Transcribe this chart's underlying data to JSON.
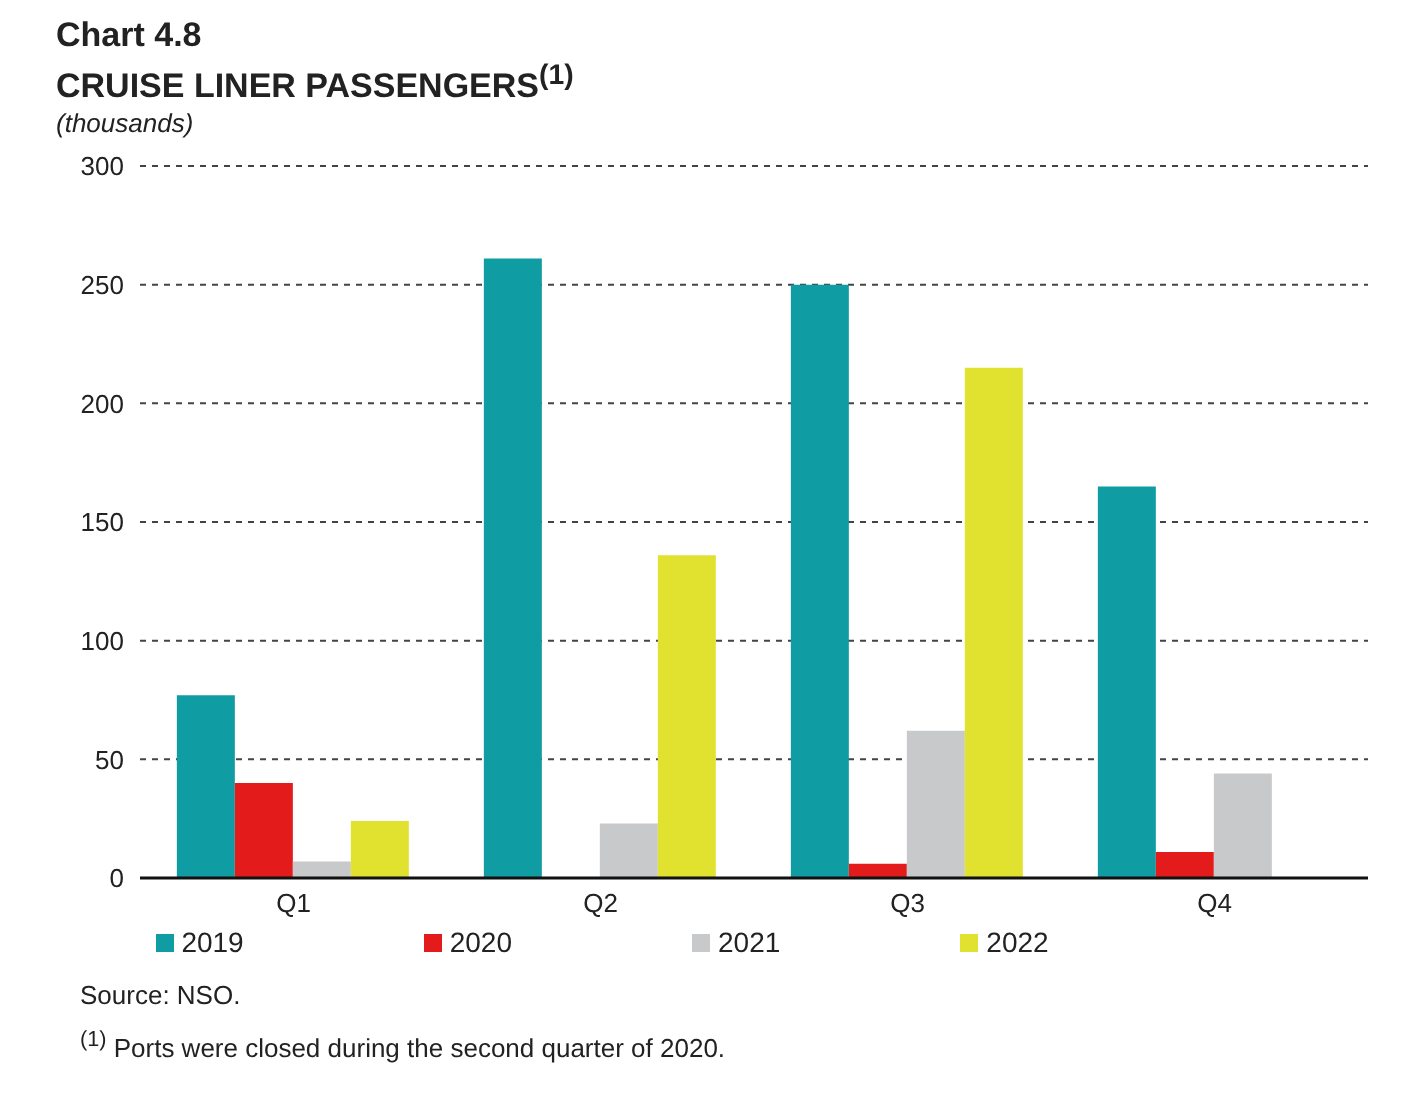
{
  "chart_data": {
    "type": "bar",
    "title": "Chart 4.8",
    "subtitle": "CRUISE LINER PASSENGERS$^{(1)}$",
    "ylabel": "(thousands)",
    "categories": [
      "Q1",
      "Q2",
      "Q3",
      "Q4"
    ],
    "series": [
      {
        "name": "2019",
        "color": "#109ca3",
        "values": [
          77,
          261,
          250,
          165
        ]
      },
      {
        "name": "2020",
        "color": "#e31b1b",
        "values": [
          40,
          0,
          6,
          11
        ]
      },
      {
        "name": "2021",
        "color": "#c8c9cb",
        "values": [
          7,
          23,
          62,
          44
        ]
      },
      {
        "name": "2022",
        "color": "#e1e22f",
        "values": [
          24,
          136,
          215,
          null
        ]
      }
    ],
    "ylim": [
      0,
      300
    ],
    "yticks": [
      0,
      50,
      100,
      150,
      200,
      250,
      300
    ],
    "grid": "y",
    "legend": "bottom",
    "annotations": [
      "Source: NSO.",
      "$^{(1)}$ Ports were closed during the second quarter of 2020."
    ]
  }
}
